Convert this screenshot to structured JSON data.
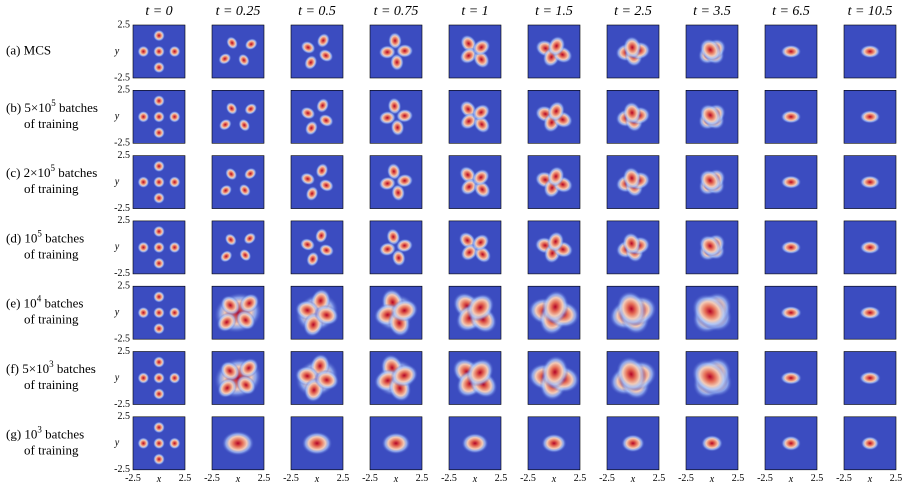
{
  "columns": [
    "t = 0",
    "t = 0.25",
    "t = 0.5",
    "t = 0.75",
    "t = 1",
    "t = 1.5",
    "t = 2.5",
    "t = 3.5",
    "t = 6.5",
    "t = 10.5"
  ],
  "rows": [
    {
      "label": "(a) MCS"
    },
    {
      "label": "(b) 5×10",
      "sup": "5",
      "rest": " batches",
      "line2": "of training"
    },
    {
      "label": "(c) 2×10",
      "sup": "5",
      "rest": " batches",
      "line2": "of training"
    },
    {
      "label": "(d) 10",
      "sup": "5",
      "rest": " batches",
      "line2": "of training"
    },
    {
      "label": "(e) 10",
      "sup": "4",
      "rest": " batches",
      "line2": "of training"
    },
    {
      "label": "(f) 5×10",
      "sup": "3",
      "rest": " batches",
      "line2": "of training"
    },
    {
      "label": "(g) 10",
      "sup": "3",
      "rest": " batches",
      "line2": "of training"
    }
  ],
  "axes": {
    "y_top": "2.5",
    "y_bottom": "-2.5",
    "ylabel": "y",
    "x_left": "-2.5",
    "x_right": "2.5",
    "xlabel": "x"
  }
}
